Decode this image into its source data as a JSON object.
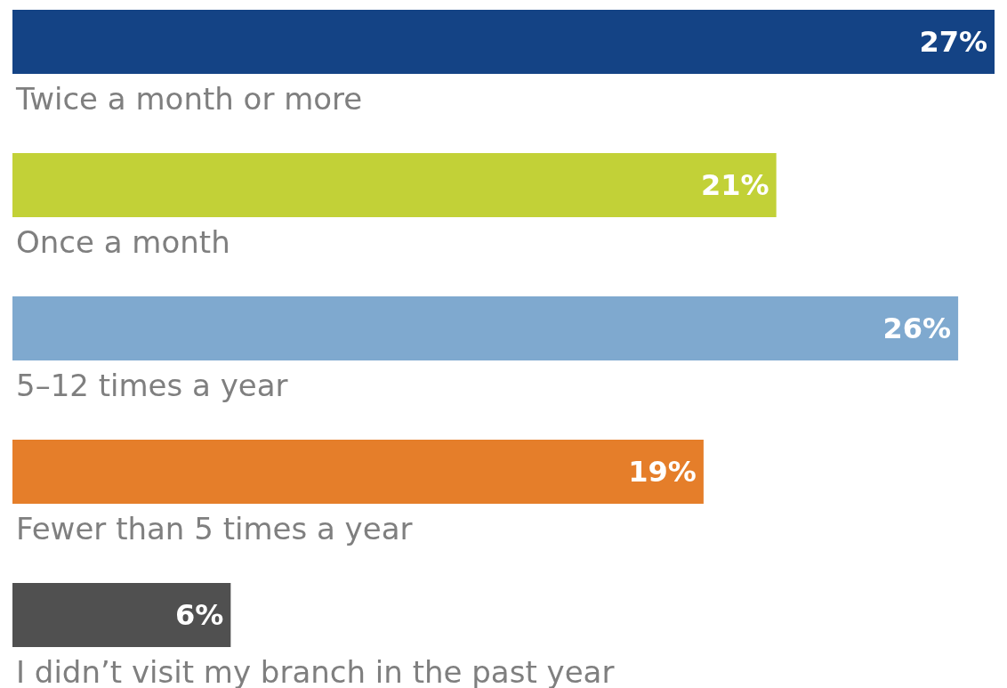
{
  "chart_data": {
    "type": "bar",
    "orientation": "horizontal",
    "categories": [
      "Twice a month or more",
      "Once a month",
      "5–12 times a year",
      "Fewer than 5 times a year",
      "I didn’t visit my branch in the past year"
    ],
    "values": [
      27,
      21,
      26,
      19,
      6
    ],
    "colors": [
      "#144385",
      "#c2d137",
      "#7fa9cf",
      "#e57e2a",
      "#505050"
    ],
    "value_labels": [
      "27%",
      "21%",
      "26%",
      "19%",
      "6%"
    ]
  }
}
